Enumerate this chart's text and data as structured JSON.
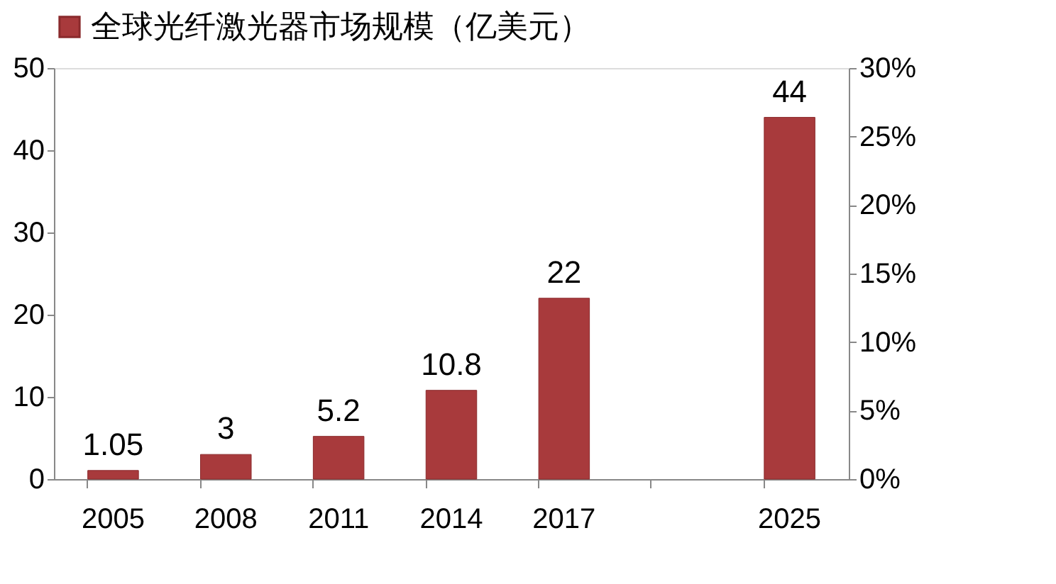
{
  "chart_data": {
    "type": "bar",
    "categories": [
      "2005",
      "2008",
      "2011",
      "2014",
      "2017",
      null,
      "2025"
    ],
    "series": [
      {
        "name": "全球光纤激光器市场规模（亿美元）",
        "color": "#a83a3c",
        "values": [
          1.05,
          3,
          5.2,
          10.8,
          22,
          null,
          44
        ]
      }
    ],
    "ylim": [
      0,
      50
    ],
    "yticks": [
      0,
      10,
      20,
      30,
      40,
      50
    ],
    "y2lim": [
      0,
      30
    ],
    "y2ticks": [
      {
        "value": 0,
        "label": "0%"
      },
      {
        "value": 5,
        "label": "5%"
      },
      {
        "value": 10,
        "label": "10%"
      },
      {
        "value": 15,
        "label": "15%"
      },
      {
        "value": 20,
        "label": "20%"
      },
      {
        "value": 25,
        "label": "25%"
      },
      {
        "value": 30,
        "label": "30%"
      }
    ],
    "data_labels": true,
    "grid": false,
    "legend": "top"
  }
}
